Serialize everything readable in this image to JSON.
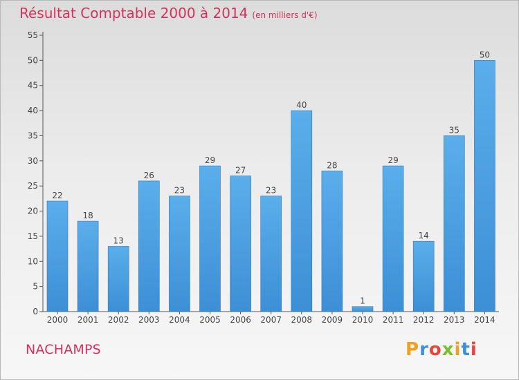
{
  "chart_data": {
    "type": "bar",
    "title": "Résultat Comptable 2000 à 2014",
    "subtitle": "(en milliers d'€)",
    "xlabel": "",
    "ylabel": "",
    "categories": [
      "2000",
      "2001",
      "2002",
      "2003",
      "2004",
      "2005",
      "2006",
      "2007",
      "2008",
      "2009",
      "2010",
      "2011",
      "2012",
      "2013",
      "2014"
    ],
    "values": [
      22,
      18,
      13,
      26,
      23,
      29,
      27,
      23,
      40,
      28,
      1,
      29,
      14,
      35,
      50
    ],
    "ylim": [
      0,
      55
    ],
    "yticks": [
      0,
      5,
      10,
      15,
      20,
      25,
      30,
      35,
      40,
      45,
      50,
      55
    ],
    "grid": false,
    "legend": "none",
    "bar_color": "#3d8fd6",
    "bar_color_light": "#5aaeea"
  },
  "footer": {
    "commune": "NACHAMPS",
    "logo_text": "Proxiti"
  },
  "colors": {
    "title": "#d2335e",
    "axis": "#555555",
    "logo": [
      "#f0a020",
      "#3c8fd8",
      "#e8463c",
      "#7bbf2e",
      "#f0a020",
      "#3c8fd8",
      "#e8463c"
    ]
  }
}
